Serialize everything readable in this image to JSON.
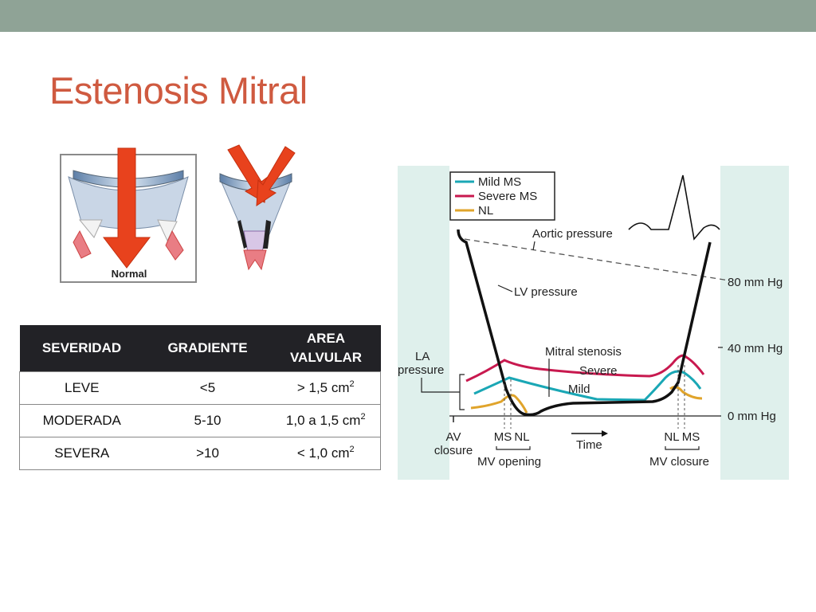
{
  "slide": {
    "title": "Estenosis Mitral"
  },
  "valve_figure": {
    "normal_label": "Normal"
  },
  "severity_table": {
    "headers": {
      "col1": "SEVERIDAD",
      "col2": "GRADIENTE",
      "col3_line1": "AREA",
      "col3_line2": "VALVULAR"
    },
    "unit": "cm",
    "unit_exponent": "2",
    "rows": [
      {
        "severidad": "LEVE",
        "gradiente": "<5",
        "area": "> 1,5 "
      },
      {
        "severidad": "MODERADA",
        "gradiente": "5-10",
        "area": "1,0 a 1,5 "
      },
      {
        "severidad": "SEVERA",
        "gradiente": ">10",
        "area": "< 1,0 "
      }
    ]
  },
  "pressure_diagram": {
    "legend": [
      {
        "label": "Mild MS",
        "color": "#1aa7b5"
      },
      {
        "label": "Severe MS",
        "color": "#c8194f"
      },
      {
        "label": "NL",
        "color": "#e0a42b"
      }
    ],
    "labels": {
      "aortic_pressure": "Aortic pressure",
      "lv_pressure": "LV pressure",
      "mitral_stenosis": "Mitral stenosis",
      "severe": "Severe",
      "mild": "Mild",
      "la_pressure_line1": "LA",
      "la_pressure_line2": "pressure",
      "av_closure_line1": "AV",
      "av_closure_line2": "closure",
      "ms_left": "MS",
      "nl_left": "NL",
      "mv_opening": "MV opening",
      "time": "Time",
      "nl_right": "NL",
      "ms_right": "MS",
      "mv_closure": "MV closure"
    },
    "pressure_axis": [
      "80 mm Hg",
      "40 mm Hg",
      "0 mm Hg"
    ],
    "colors": {
      "background": "#dff0ec",
      "plot_area": "#ffffff",
      "lv_line": "#111111"
    }
  }
}
